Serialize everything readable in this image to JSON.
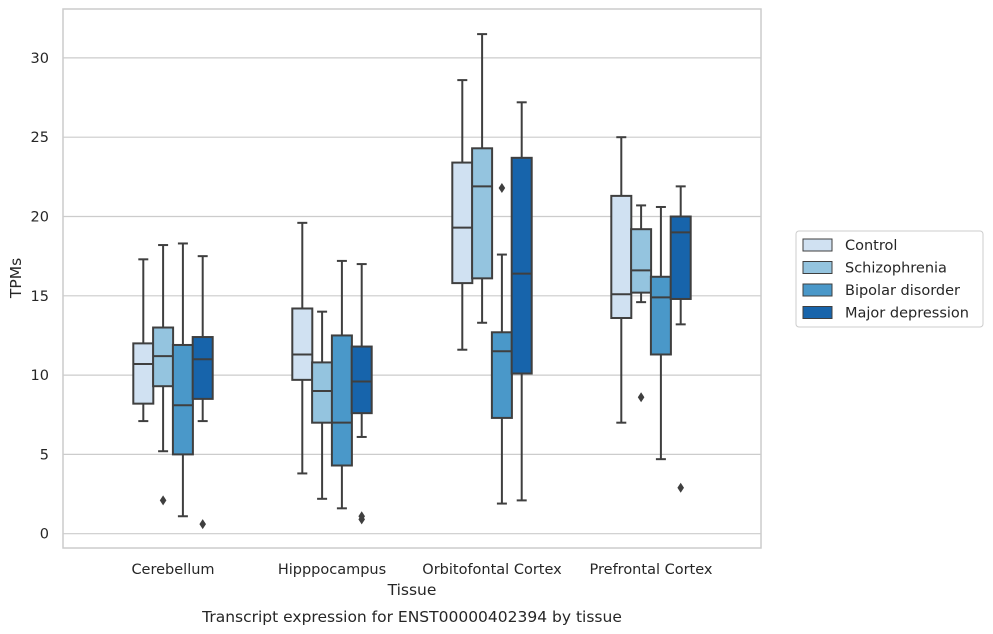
{
  "chart_data": {
    "type": "boxplot",
    "caption": "Transcript expression for ENST00000402394 by tissue",
    "xlabel": "Tissue",
    "ylabel": "TPMs",
    "ylim": [
      -0.8,
      32.8
    ],
    "yticks": [
      0,
      5,
      10,
      15,
      20,
      25,
      30
    ],
    "grid": true,
    "legend_position": "right",
    "categories": [
      "Cerebellum",
      "Hipppocampus",
      "Orbitofontal Cortex",
      "Prefrontal Cortex"
    ],
    "series": [
      {
        "name": "Control",
        "color": "#d0e1f2",
        "boxes": [
          {
            "whislo": 7.1,
            "q1": 8.2,
            "med": 10.7,
            "q3": 12.0,
            "whishi": 17.3,
            "fliers": []
          },
          {
            "whislo": 3.8,
            "q1": 9.7,
            "med": 11.3,
            "q3": 14.2,
            "whishi": 19.6,
            "fliers": []
          },
          {
            "whislo": 11.6,
            "q1": 15.8,
            "med": 19.3,
            "q3": 23.4,
            "whishi": 28.6,
            "fliers": []
          },
          {
            "whislo": 7.0,
            "q1": 13.6,
            "med": 15.1,
            "q3": 21.3,
            "whishi": 25.0,
            "fliers": []
          }
        ]
      },
      {
        "name": "Schizophrenia",
        "color": "#94c4df",
        "boxes": [
          {
            "whislo": 5.2,
            "q1": 9.3,
            "med": 11.2,
            "q3": 13.0,
            "whishi": 18.2,
            "fliers": [
              2.1
            ]
          },
          {
            "whislo": 2.2,
            "q1": 7.0,
            "med": 9.0,
            "q3": 10.8,
            "whishi": 14.0,
            "fliers": []
          },
          {
            "whislo": 13.3,
            "q1": 16.1,
            "med": 21.9,
            "q3": 24.3,
            "whishi": 31.5,
            "fliers": []
          },
          {
            "whislo": 14.6,
            "q1": 15.2,
            "med": 16.6,
            "q3": 19.2,
            "whishi": 20.7,
            "fliers": [
              8.6
            ]
          }
        ]
      },
      {
        "name": "Bipolar disorder",
        "color": "#4a98c9",
        "boxes": [
          {
            "whislo": 1.1,
            "q1": 5.0,
            "med": 8.1,
            "q3": 11.9,
            "whishi": 18.3,
            "fliers": []
          },
          {
            "whislo": 1.6,
            "q1": 4.3,
            "med": 7.0,
            "q3": 12.5,
            "whishi": 17.2,
            "fliers": []
          },
          {
            "whislo": 1.9,
            "q1": 7.3,
            "med": 11.5,
            "q3": 12.7,
            "whishi": 17.6,
            "fliers": [
              21.8
            ]
          },
          {
            "whislo": 4.7,
            "q1": 11.3,
            "med": 14.9,
            "q3": 16.2,
            "whishi": 20.6,
            "fliers": []
          }
        ]
      },
      {
        "name": "Major depression",
        "color": "#1764ab",
        "boxes": [
          {
            "whislo": 7.1,
            "q1": 8.5,
            "med": 11.0,
            "q3": 12.4,
            "whishi": 17.5,
            "fliers": [
              0.6
            ]
          },
          {
            "whislo": 6.1,
            "q1": 7.6,
            "med": 9.6,
            "q3": 11.8,
            "whishi": 17.0,
            "fliers": [
              0.9,
              1.1
            ]
          },
          {
            "whislo": 2.1,
            "q1": 10.1,
            "med": 16.4,
            "q3": 23.7,
            "whishi": 27.2,
            "fliers": []
          },
          {
            "whislo": 13.2,
            "q1": 14.8,
            "med": 19.0,
            "q3": 20.0,
            "whishi": 21.9,
            "fliers": [
              2.9
            ]
          }
        ]
      }
    ]
  }
}
